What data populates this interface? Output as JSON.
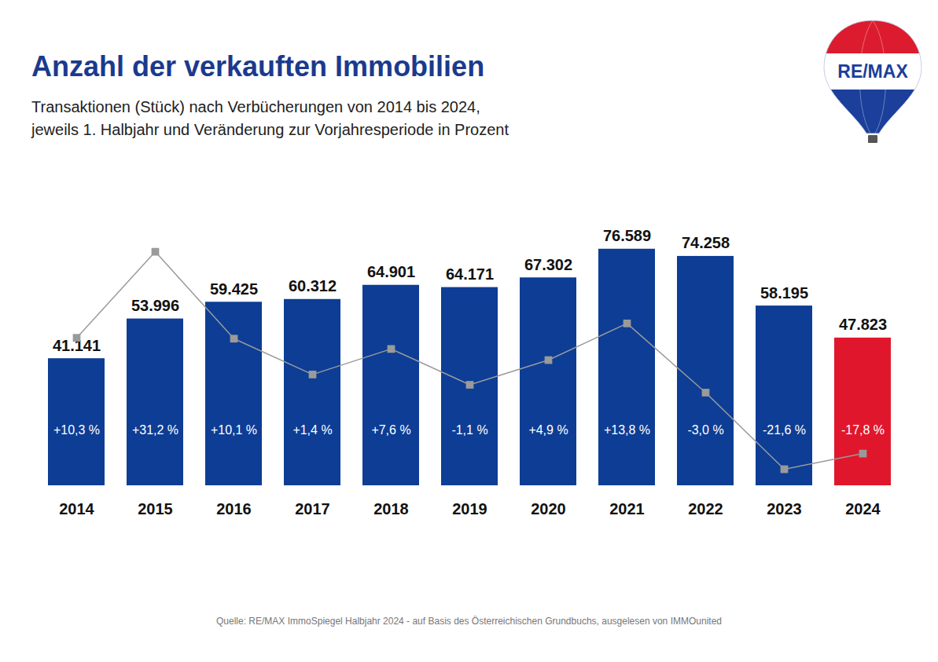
{
  "chart_data": {
    "type": "bar",
    "title": "Anzahl der verkauften Immobilien",
    "subtitle": "Transaktionen (Stück) nach Verbücherungen von 2014 bis 2024,\njeweils 1. Halbjahr und Veränderung zur Vorjahresperiode in Prozent",
    "source": "Quelle: RE/MAX ImmoSpiegel Halbjahr 2024 - auf Basis des Österreichischen Grundbuchs, ausgelesen von IMMOunited",
    "logo": "RE/MAX",
    "categories": [
      "2014",
      "2015",
      "2016",
      "2017",
      "2018",
      "2019",
      "2020",
      "2021",
      "2022",
      "2023",
      "2024"
    ],
    "values": [
      41141,
      53996,
      59425,
      60312,
      64901,
      64171,
      67302,
      76589,
      74258,
      58195,
      47823
    ],
    "value_labels": [
      "41.141",
      "53.996",
      "59.425",
      "60.312",
      "64.901",
      "64.171",
      "67.302",
      "76.589",
      "74.258",
      "58.195",
      "47.823"
    ],
    "colors": [
      "#0d3d95",
      "#0d3d95",
      "#0d3d95",
      "#0d3d95",
      "#0d3d95",
      "#0d3d95",
      "#0d3d95",
      "#0d3d95",
      "#0d3d95",
      "#0d3d95",
      "#e0172c"
    ],
    "ylim": [
      0,
      90000
    ],
    "data_labels": true,
    "tick_labels": "x",
    "change": {
      "type": "line",
      "axis": "y2",
      "color": "#9a9a9a",
      "marker": "square",
      "values": [
        10.3,
        31.2,
        10.1,
        1.4,
        7.6,
        -1.1,
        4.9,
        13.8,
        -3.0,
        -21.6,
        -17.8
      ],
      "value_labels": [
        "+10,3 %",
        "+31,2 %",
        "+10,1 %",
        "+1,4 %",
        "+7,6 %",
        "-1,1 %",
        "+4,9 %",
        "+13,8 %",
        "-3,0 %",
        "-21,6 %",
        "-17,8 %"
      ]
    },
    "y2lim": [
      -25.6,
      41.9
    ]
  }
}
